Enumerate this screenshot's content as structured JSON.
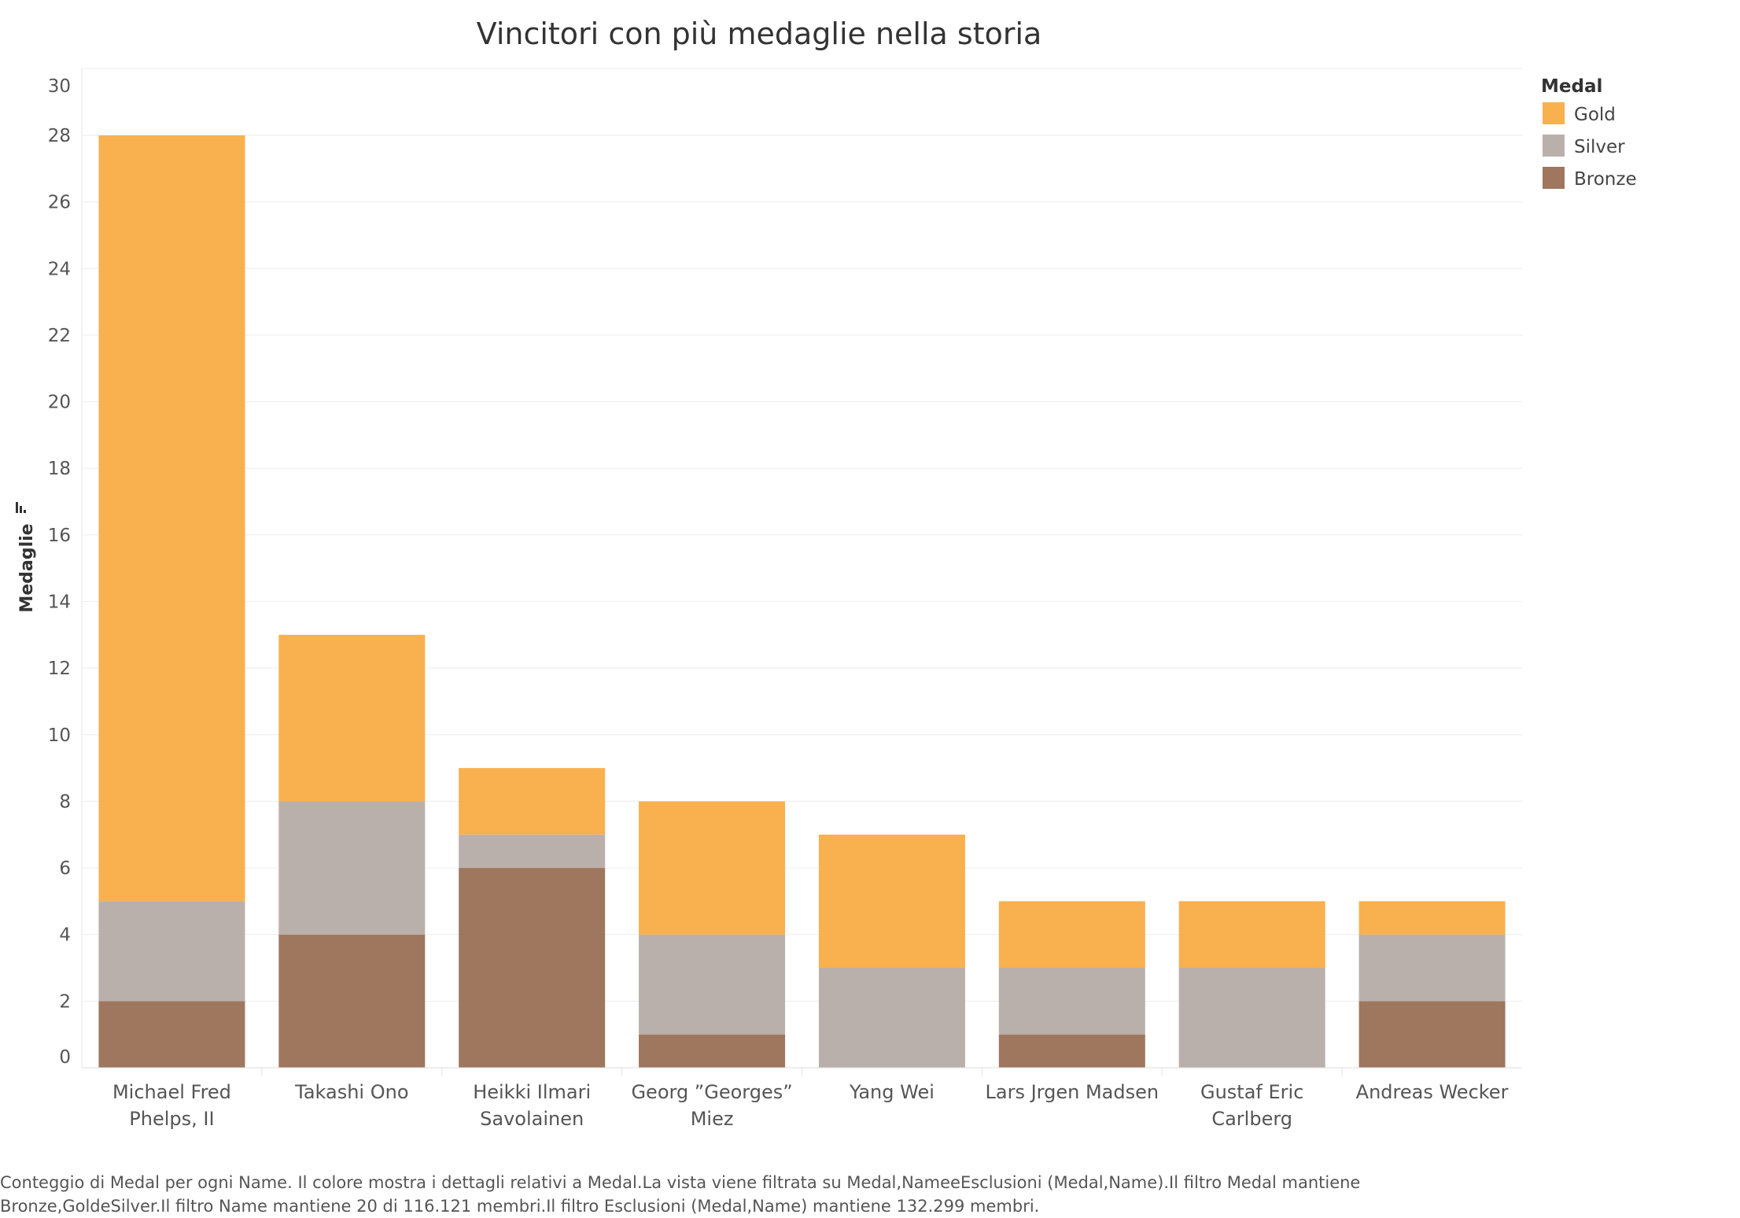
{
  "chart_data": {
    "type": "bar",
    "stacked": true,
    "title": "Vincitori con più medaglie nella storia",
    "xlabel": "",
    "ylabel": "Medaglie",
    "ylim": [
      0,
      30
    ],
    "yticks": [
      0,
      2,
      4,
      6,
      8,
      10,
      12,
      14,
      16,
      18,
      20,
      22,
      24,
      26,
      28,
      30
    ],
    "grid": true,
    "categories": [
      [
        "Michael Fred",
        "Phelps, II"
      ],
      [
        "Takashi Ono"
      ],
      [
        "Heikki Ilmari",
        "Savolainen"
      ],
      [
        "Georg ”Georges”",
        "Miez"
      ],
      [
        "Yang Wei"
      ],
      [
        "Lars Jrgen Madsen"
      ],
      [
        "Gustaf Eric",
        "Carlberg"
      ],
      [
        "Andreas Wecker"
      ]
    ],
    "series": [
      {
        "name": "Bronze",
        "color": "#9e775e",
        "values": [
          2,
          4,
          6,
          1,
          0,
          1,
          0,
          2
        ]
      },
      {
        "name": "Silver",
        "color": "#bab0ab",
        "values": [
          3,
          4,
          1,
          3,
          3,
          2,
          3,
          2
        ]
      },
      {
        "name": "Gold",
        "color": "#f9b04e",
        "values": [
          23,
          5,
          2,
          4,
          4,
          2,
          2,
          1
        ]
      }
    ],
    "legend": {
      "title": "Medal",
      "position": "top-right",
      "entries": [
        {
          "label": "Gold",
          "color": "#f9b04e"
        },
        {
          "label": "Silver",
          "color": "#bab0ab"
        },
        {
          "label": "Bronze",
          "color": "#9e775e"
        }
      ]
    }
  },
  "caption": {
    "line1": "Conteggio di Medal per ogni Name. Il colore mostra i dettagli relativi a Medal.La vista viene filtrata su Medal,NameeEsclusioni (Medal,Name).Il filtro Medal mantiene",
    "line2": "Bronze,GoldeSilver.Il filtro Name mantiene 20 di 116.121 membri.Il filtro Esclusioni (Medal,Name) mantiene 132.299 membri."
  }
}
